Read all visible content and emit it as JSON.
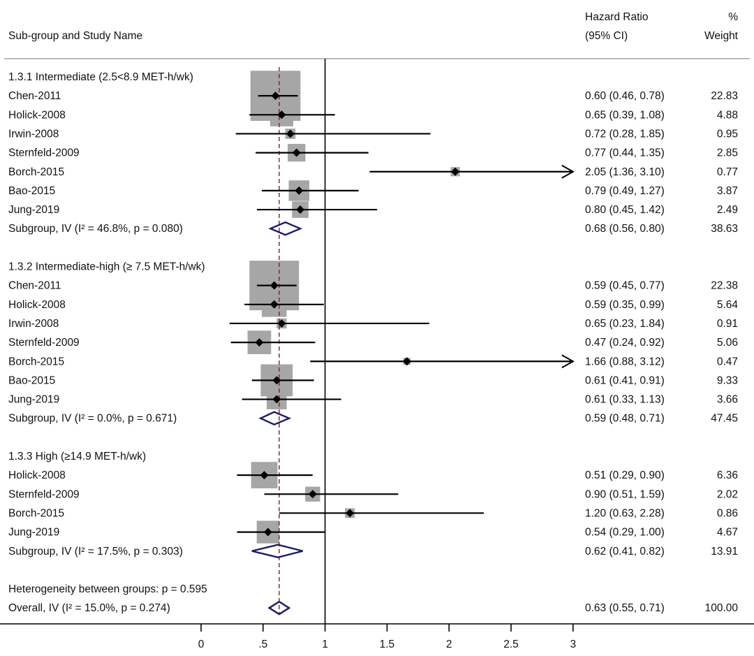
{
  "chart_data": {
    "type": "forest",
    "header": {
      "study_col": "Sub-group and Study Name",
      "hr_col_line1": "Hazard Ratio",
      "hr_col_line2": "(95% CI)",
      "weight_col_line1": "%",
      "weight_col_line2": "Weight"
    },
    "xaxis": {
      "ticks": [
        0,
        0.5,
        1,
        1.5,
        2,
        2.5,
        3
      ],
      "tick_labels": [
        "0",
        ".5",
        "1",
        "1.5",
        "2",
        "2.5",
        "3"
      ],
      "range": [
        0,
        3
      ],
      "null_line": 1
    },
    "overall_estimate_line": 0.63,
    "groups": [
      {
        "label": "1.3.1 Intermediate (2.5<8.9 MET-h/wk)",
        "studies": [
          {
            "name": "Chen-2011",
            "hr": 0.6,
            "lo": 0.46,
            "hi": 0.78,
            "ci_text": "0.60 (0.46, 0.78)",
            "weight": "22.83"
          },
          {
            "name": "Holick-2008",
            "hr": 0.65,
            "lo": 0.39,
            "hi": 1.08,
            "ci_text": "0.65 (0.39, 1.08)",
            "weight": "4.88"
          },
          {
            "name": "Irwin-2008",
            "hr": 0.72,
            "lo": 0.28,
            "hi": 1.85,
            "ci_text": "0.72 (0.28, 1.85)",
            "weight": "0.95"
          },
          {
            "name": "Sternfeld-2009",
            "hr": 0.77,
            "lo": 0.44,
            "hi": 1.35,
            "ci_text": "0.77 (0.44, 1.35)",
            "weight": "2.85"
          },
          {
            "name": "Borch-2015",
            "hr": 2.05,
            "lo": 1.36,
            "hi": 3.1,
            "ci_text": "2.05 (1.36, 3.10)",
            "weight": "0.77"
          },
          {
            "name": "Bao-2015",
            "hr": 0.79,
            "lo": 0.49,
            "hi": 1.27,
            "ci_text": "0.79 (0.49, 1.27)",
            "weight": "3.87"
          },
          {
            "name": "Jung-2019",
            "hr": 0.8,
            "lo": 0.45,
            "hi": 1.42,
            "ci_text": "0.80 (0.45, 1.42)",
            "weight": "2.49"
          }
        ],
        "subgroup": {
          "label": "Subgroup, IV (I² = 46.8%, p = 0.080)",
          "hr": 0.68,
          "lo": 0.56,
          "hi": 0.8,
          "ci_text": "0.68 (0.56, 0.80)",
          "weight": "38.63"
        }
      },
      {
        "label": "1.3.2 Intermediate-high (≥ 7.5 MET-h/wk)",
        "studies": [
          {
            "name": "Chen-2011",
            "hr": 0.59,
            "lo": 0.45,
            "hi": 0.77,
            "ci_text": "0.59 (0.45, 0.77)",
            "weight": "22.38"
          },
          {
            "name": "Holick-2008",
            "hr": 0.59,
            "lo": 0.35,
            "hi": 0.99,
            "ci_text": "0.59 (0.35, 0.99)",
            "weight": "5.64"
          },
          {
            "name": "Irwin-2008",
            "hr": 0.65,
            "lo": 0.23,
            "hi": 1.84,
            "ci_text": "0.65 (0.23, 1.84)",
            "weight": "0.91"
          },
          {
            "name": "Sternfeld-2009",
            "hr": 0.47,
            "lo": 0.24,
            "hi": 0.92,
            "ci_text": "0.47 (0.24, 0.92)",
            "weight": "5.06"
          },
          {
            "name": "Borch-2015",
            "hr": 1.66,
            "lo": 0.88,
            "hi": 3.12,
            "ci_text": "1.66 (0.88, 3.12)",
            "weight": "0.47"
          },
          {
            "name": "Bao-2015",
            "hr": 0.61,
            "lo": 0.41,
            "hi": 0.91,
            "ci_text": "0.61 (0.41, 0.91)",
            "weight": "9.33"
          },
          {
            "name": "Jung-2019",
            "hr": 0.61,
            "lo": 0.33,
            "hi": 1.13,
            "ci_text": "0.61 (0.33, 1.13)",
            "weight": "3.66"
          }
        ],
        "subgroup": {
          "label": "Subgroup, IV (I² = 0.0%, p = 0.671)",
          "hr": 0.59,
          "lo": 0.48,
          "hi": 0.71,
          "ci_text": "0.59 (0.48, 0.71)",
          "weight": "47.45"
        }
      },
      {
        "label": "1.3.3 High (≥14.9 MET-h/wk)",
        "studies": [
          {
            "name": "Holick-2008",
            "hr": 0.51,
            "lo": 0.29,
            "hi": 0.9,
            "ci_text": "0.51 (0.29, 0.90)",
            "weight": "6.36"
          },
          {
            "name": "Sternfeld-2009",
            "hr": 0.9,
            "lo": 0.51,
            "hi": 1.59,
            "ci_text": "0.90 (0.51, 1.59)",
            "weight": "2.02"
          },
          {
            "name": "Borch-2015",
            "hr": 1.2,
            "lo": 0.63,
            "hi": 2.28,
            "ci_text": "1.20 (0.63, 2.28)",
            "weight": "0.86"
          },
          {
            "name": "Jung-2019",
            "hr": 0.54,
            "lo": 0.29,
            "hi": 1.0,
            "ci_text": "0.54 (0.29, 1.00)",
            "weight": "4.67"
          }
        ],
        "subgroup": {
          "label": "Subgroup, IV (I² = 17.5%, p = 0.303)",
          "hr": 0.62,
          "lo": 0.41,
          "hi": 0.82,
          "ci_text": "0.62 (0.41, 0.82)",
          "weight": "13.91"
        }
      }
    ],
    "heterogeneity": "Heterogeneity between groups: p = 0.595",
    "overall": {
      "label": "Overall, IV (I² = 15.0%, p = 0.274)",
      "hr": 0.63,
      "lo": 0.55,
      "hi": 0.71,
      "ci_text": "0.63 (0.55, 0.71)",
      "weight": "100.00"
    },
    "colors": {
      "box": "#a6a6a6",
      "diamond": "#1a1a6e",
      "ref_line": "#8b1a1a",
      "line": "#000000"
    }
  }
}
